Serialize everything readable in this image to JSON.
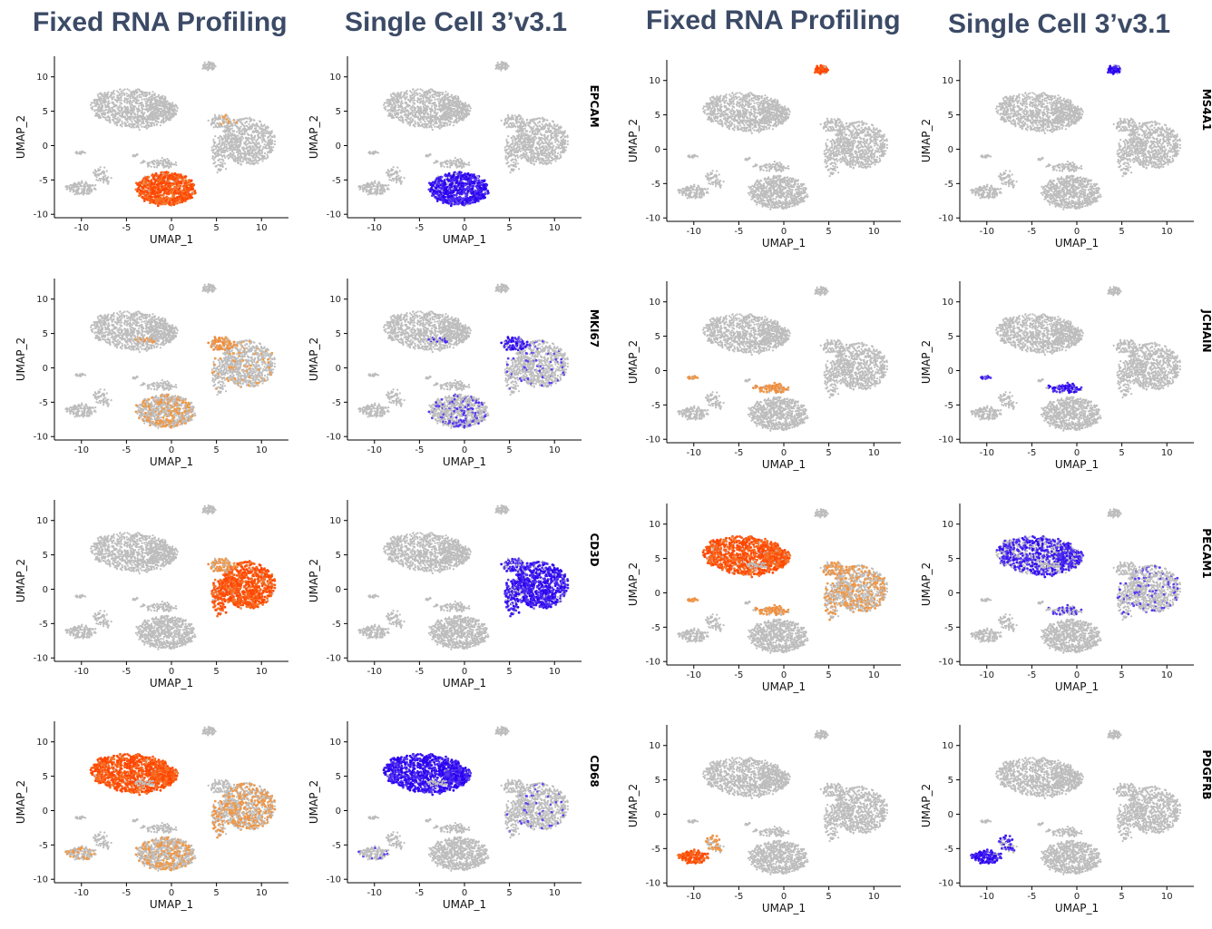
{
  "headers": {
    "left_fixed": "Fixed RNA Profiling",
    "left_single": "Single Cell 3’v3.1",
    "right_fixed": "Fixed RNA Profiling",
    "right_single": "Single Cell 3’v3.1"
  },
  "colors": {
    "background_cells": "#bdbdbd",
    "fixed_low": "#e8b060",
    "fixed_high": "#ff4500",
    "single_low": "#8a7cf0",
    "single_high": "#2a00f0",
    "header_text": "#3b4a66",
    "axis": "#000000"
  },
  "chart_data": [
    {
      "type": "scatter",
      "panel": "left-fixed-1",
      "method": "Fixed RNA Profiling",
      "gene": "",
      "xlabel": "UMAP_1",
      "ylabel": "UMAP_2",
      "xlim": [
        -13,
        13
      ],
      "ylim": [
        -10.5,
        13
      ],
      "xticks": [
        -10,
        -5,
        0,
        5,
        10
      ],
      "yticks": [
        -10,
        -5,
        0,
        5,
        10
      ],
      "expression": {
        "epithelial": 0.95,
        "prolif": 0.1
      }
    },
    {
      "type": "scatter",
      "panel": "left-single-1",
      "method": "Single Cell 3’v3.1",
      "gene": "EPCAM",
      "xlabel": "UMAP_1",
      "ylabel": "UMAP_2",
      "xlim": [
        -13,
        13
      ],
      "ylim": [
        -10.5,
        13
      ],
      "xticks": [
        -10,
        -5,
        0,
        5,
        10
      ],
      "yticks": [
        -10,
        -5,
        0,
        5,
        10
      ],
      "expression": {
        "epithelial": 0.9
      }
    },
    {
      "type": "scatter",
      "panel": "left-fixed-2",
      "method": "Fixed RNA Profiling",
      "gene": "",
      "xlabel": "UMAP_1",
      "ylabel": "UMAP_2",
      "xlim": [
        -13,
        13
      ],
      "ylim": [
        -10.5,
        13
      ],
      "xticks": [
        -10,
        -5,
        0,
        5,
        10
      ],
      "yticks": [
        -10,
        -5,
        0,
        5,
        10
      ],
      "expression": {
        "prolif": 0.85,
        "epithelial": 0.3,
        "myeloid_bridge": 0.4,
        "tcell": 0.1
      }
    },
    {
      "type": "scatter",
      "panel": "left-single-2",
      "method": "Single Cell 3’v3.1",
      "gene": "MKI67",
      "xlabel": "UMAP_1",
      "ylabel": "UMAP_2",
      "xlim": [
        -13,
        13
      ],
      "ylim": [
        -10.5,
        13
      ],
      "xticks": [
        -10,
        -5,
        0,
        5,
        10
      ],
      "yticks": [
        -10,
        -5,
        0,
        5,
        10
      ],
      "expression": {
        "prolif": 0.8,
        "epithelial": 0.2,
        "myeloid_bridge": 0.35,
        "tcell": 0.08
      }
    },
    {
      "type": "scatter",
      "panel": "left-fixed-3",
      "method": "Fixed RNA Profiling",
      "gene": "",
      "xlabel": "UMAP_1",
      "ylabel": "UMAP_2",
      "xlim": [
        -13,
        13
      ],
      "ylim": [
        -10.5,
        13
      ],
      "xticks": [
        -10,
        -5,
        0,
        5,
        10
      ],
      "yticks": [
        -10,
        -5,
        0,
        5,
        10
      ],
      "expression": {
        "tcell": 0.95,
        "prolif": 0.7
      }
    },
    {
      "type": "scatter",
      "panel": "left-single-3",
      "method": "Single Cell 3’v3.1",
      "gene": "CD3D",
      "xlabel": "UMAP_1",
      "ylabel": "UMAP_2",
      "xlim": [
        -13,
        13
      ],
      "ylim": [
        -10.5,
        13
      ],
      "xticks": [
        -10,
        -5,
        0,
        5,
        10
      ],
      "yticks": [
        -10,
        -5,
        0,
        5,
        10
      ],
      "expression": {
        "tcell": 0.85,
        "prolif": 0.7
      }
    },
    {
      "type": "scatter",
      "panel": "left-fixed-4",
      "method": "Fixed RNA Profiling",
      "gene": "",
      "xlabel": "UMAP_1",
      "ylabel": "UMAP_2",
      "xlim": [
        -13,
        13
      ],
      "ylim": [
        -10.5,
        13
      ],
      "xticks": [
        -10,
        -5,
        0,
        5,
        10
      ],
      "yticks": [
        -10,
        -5,
        0,
        5,
        10
      ],
      "expression": {
        "myeloid": 0.97,
        "tcell": 0.4,
        "epithelial": 0.3,
        "fibro": 0.3
      }
    },
    {
      "type": "scatter",
      "panel": "left-single-4",
      "method": "Single Cell 3’v3.1",
      "gene": "CD68",
      "xlabel": "UMAP_1",
      "ylabel": "UMAP_2",
      "xlim": [
        -13,
        13
      ],
      "ylim": [
        -10.5,
        13
      ],
      "xticks": [
        -10,
        -5,
        0,
        5,
        10
      ],
      "yticks": [
        -10,
        -5,
        0,
        5,
        10
      ],
      "expression": {
        "myeloid": 0.95,
        "tcell": 0.05,
        "fibro": 0.1
      }
    },
    {
      "type": "scatter",
      "panel": "right-fixed-1",
      "method": "Fixed RNA Profiling",
      "gene": "",
      "xlabel": "UMAP_1",
      "ylabel": "UMAP_2",
      "xlim": [
        -13,
        13
      ],
      "ylim": [
        -10.5,
        13
      ],
      "xticks": [
        -10,
        -5,
        0,
        5,
        10
      ],
      "yticks": [
        -10,
        -5,
        0,
        5,
        10
      ],
      "expression": {
        "bcell": 0.97
      }
    },
    {
      "type": "scatter",
      "panel": "right-single-1",
      "method": "Single Cell 3’v3.1",
      "gene": "MS4A1",
      "xlabel": "UMAP_1",
      "ylabel": "UMAP_2",
      "xlim": [
        -13,
        13
      ],
      "ylim": [
        -10.5,
        13
      ],
      "xticks": [
        -10,
        -5,
        0,
        5,
        10
      ],
      "yticks": [
        -10,
        -5,
        0,
        5,
        10
      ],
      "expression": {
        "bcell": 0.95
      }
    },
    {
      "type": "scatter",
      "panel": "right-fixed-2",
      "method": "Fixed RNA Profiling",
      "gene": "",
      "xlabel": "UMAP_1",
      "ylabel": "UMAP_2",
      "xlim": [
        -13,
        13
      ],
      "ylim": [
        -10.5,
        13
      ],
      "xticks": [
        -10,
        -5,
        0,
        5,
        10
      ],
      "yticks": [
        -10,
        -5,
        0,
        5,
        10
      ],
      "expression": {
        "plasma": 0.9,
        "left_small": 0.6
      }
    },
    {
      "type": "scatter",
      "panel": "right-single-2",
      "method": "Single Cell 3’v3.1",
      "gene": "JCHAIN",
      "xlabel": "UMAP_1",
      "ylabel": "UMAP_2",
      "xlim": [
        -13,
        13
      ],
      "ylim": [
        -10.5,
        13
      ],
      "xticks": [
        -10,
        -5,
        0,
        5,
        10
      ],
      "yticks": [
        -10,
        -5,
        0,
        5,
        10
      ],
      "expression": {
        "plasma": 0.85,
        "left_small": 0.6
      }
    },
    {
      "type": "scatter",
      "panel": "right-fixed-3",
      "method": "Fixed RNA Profiling",
      "gene": "",
      "xlabel": "UMAP_1",
      "ylabel": "UMAP_2",
      "xlim": [
        -13,
        13
      ],
      "ylim": [
        -10.5,
        13
      ],
      "xticks": [
        -10,
        -5,
        0,
        5,
        10
      ],
      "yticks": [
        -10,
        -5,
        0,
        5,
        10
      ],
      "expression": {
        "myeloid": 0.92,
        "tcell": 0.35,
        "prolif": 0.6,
        "plasma": 0.8,
        "left_small": 0.8
      }
    },
    {
      "type": "scatter",
      "panel": "right-single-3",
      "method": "Single Cell 3’v3.1",
      "gene": "PECAM1",
      "xlabel": "UMAP_1",
      "ylabel": "UMAP_2",
      "xlim": [
        -13,
        13
      ],
      "ylim": [
        -10.5,
        13
      ],
      "xticks": [
        -10,
        -5,
        0,
        5,
        10
      ],
      "yticks": [
        -10,
        -5,
        0,
        5,
        10
      ],
      "expression": {
        "myeloid": 0.6,
        "tcell": 0.12,
        "plasma": 0.4
      }
    },
    {
      "type": "scatter",
      "panel": "right-fixed-4",
      "method": "Fixed RNA Profiling",
      "gene": "",
      "xlabel": "UMAP_1",
      "ylabel": "UMAP_2",
      "xlim": [
        -13,
        13
      ],
      "ylim": [
        -10.5,
        13
      ],
      "xticks": [
        -10,
        -5,
        0,
        5,
        10
      ],
      "yticks": [
        -10,
        -5,
        0,
        5,
        10
      ],
      "expression": {
        "fibro": 0.97,
        "bridge2": 0.6
      }
    },
    {
      "type": "scatter",
      "panel": "right-single-4",
      "method": "Single Cell 3’v3.1",
      "gene": "PDGFRB",
      "xlabel": "UMAP_1",
      "ylabel": "UMAP_2",
      "xlim": [
        -13,
        13
      ],
      "ylim": [
        -10.5,
        13
      ],
      "xticks": [
        -10,
        -5,
        0,
        5,
        10
      ],
      "yticks": [
        -10,
        -5,
        0,
        5,
        10
      ],
      "expression": {
        "fibro": 0.9,
        "bridge2": 0.6
      }
    }
  ]
}
